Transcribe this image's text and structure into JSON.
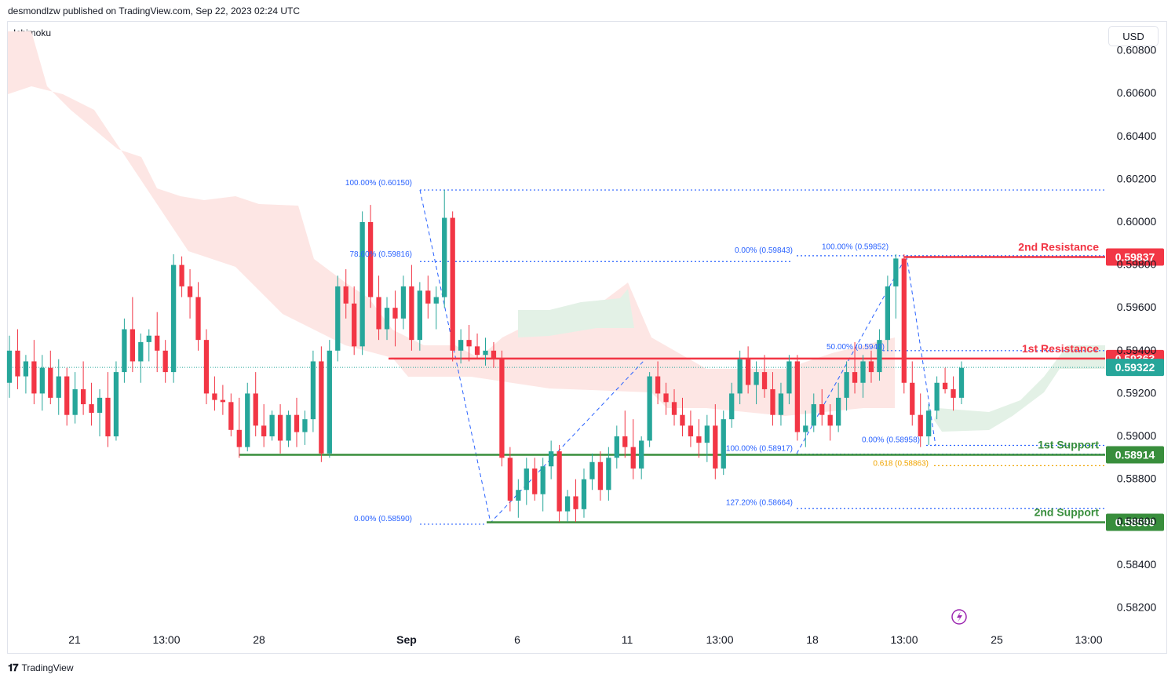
{
  "header": {
    "published_by": "desmondlzw published on TradingView.com, Sep 22, 2023 02:24 UTC"
  },
  "indicator_label": "Ichimoku",
  "currency_button": "USD",
  "footer": {
    "brand": "TradingView"
  },
  "colors": {
    "bull": "#26a69a",
    "bear": "#f23645",
    "resistance": "#f23645",
    "support": "#388e3c",
    "fib": "#2962ff",
    "fib_golden": "#f0a400",
    "cloud_bear": "#fde6e4",
    "cloud_bull": "#e3f1e6"
  },
  "chart_data": {
    "type": "candlestick",
    "symbol_quote": "USD",
    "ylim": [
      0.5812,
      0.6088
    ],
    "y_ticks": [
      "0.60800",
      "0.60600",
      "0.60400",
      "0.60200",
      "0.60000",
      "0.59800",
      "0.59600",
      "0.59400",
      "0.59200",
      "0.59000",
      "0.58800",
      "0.58600",
      "0.58400",
      "0.58200"
    ],
    "x_ticks": [
      "21",
      "13:00",
      "28",
      "Sep",
      "6",
      "11",
      "13:00",
      "18",
      "13:00",
      "25",
      "13:00"
    ],
    "levels": [
      {
        "name": "2nd Resistance",
        "value": 0.59837,
        "value_label": "0.59837",
        "kind": "resistance"
      },
      {
        "name": "1st Resistance",
        "value": 0.59363,
        "value_label": "0.59363",
        "kind": "resistance"
      },
      {
        "name": "1st Support",
        "value": 0.58914,
        "value_label": "0.58914",
        "kind": "support"
      },
      {
        "name": "2nd Support",
        "value": 0.58599,
        "value_label": "0.58599",
        "kind": "support"
      }
    ],
    "last_price": {
      "value": 0.59322,
      "label": "0.59322"
    },
    "fib_labels": [
      {
        "text": "100.00% (0.60150)",
        "value": 0.6015
      },
      {
        "text": "78.60% (0.59816)",
        "value": 0.59816
      },
      {
        "text": "0.00% (0.58590)",
        "value": 0.5859
      },
      {
        "text": "0.00% (0.59843)",
        "value": 0.59843
      },
      {
        "text": "100.00% (0.59852)",
        "value": 0.59852
      },
      {
        "text": "50.00% (0.5940)",
        "value": 0.594
      },
      {
        "text": "100.00% (0.58917)",
        "value": 0.58917
      },
      {
        "text": "0.00% (0.58958)",
        "value": 0.58958
      },
      {
        "text": "0.618 (0.58863)",
        "value": 0.58863
      },
      {
        "text": "127.20% (0.58664)",
        "value": 0.58664
      }
    ],
    "candles": [
      [
        0.5925,
        0.5947,
        0.5918,
        0.594
      ],
      [
        0.594,
        0.595,
        0.5922,
        0.5928
      ],
      [
        0.5928,
        0.5938,
        0.592,
        0.5935
      ],
      [
        0.5935,
        0.5945,
        0.5915,
        0.592
      ],
      [
        0.592,
        0.5938,
        0.5912,
        0.5932
      ],
      [
        0.5932,
        0.594,
        0.5915,
        0.5918
      ],
      [
        0.5918,
        0.5936,
        0.591,
        0.5928
      ],
      [
        0.5928,
        0.5932,
        0.5905,
        0.591
      ],
      [
        0.591,
        0.593,
        0.5906,
        0.5922
      ],
      [
        0.5922,
        0.5935,
        0.591,
        0.5915
      ],
      [
        0.5915,
        0.5925,
        0.5905,
        0.5911
      ],
      [
        0.5911,
        0.5922,
        0.59,
        0.5918
      ],
      [
        0.5918,
        0.593,
        0.5895,
        0.59
      ],
      [
        0.59,
        0.5935,
        0.5898,
        0.593
      ],
      [
        0.593,
        0.5955,
        0.5925,
        0.595
      ],
      [
        0.595,
        0.5965,
        0.593,
        0.5935
      ],
      [
        0.5935,
        0.5948,
        0.5925,
        0.5944
      ],
      [
        0.5944,
        0.595,
        0.5935,
        0.5947
      ],
      [
        0.5947,
        0.5958,
        0.593,
        0.594
      ],
      [
        0.594,
        0.5945,
        0.5925,
        0.593
      ],
      [
        0.593,
        0.5985,
        0.5925,
        0.598
      ],
      [
        0.598,
        0.5984,
        0.5965,
        0.597
      ],
      [
        0.597,
        0.5978,
        0.5955,
        0.5965
      ],
      [
        0.5965,
        0.5972,
        0.594,
        0.5945
      ],
      [
        0.5945,
        0.595,
        0.5915,
        0.592
      ],
      [
        0.592,
        0.5928,
        0.5912,
        0.5917
      ],
      [
        0.5917,
        0.5924,
        0.591,
        0.5916
      ],
      [
        0.5916,
        0.592,
        0.59,
        0.5903
      ],
      [
        0.5903,
        0.5918,
        0.589,
        0.5895
      ],
      [
        0.5895,
        0.5925,
        0.5893,
        0.592
      ],
      [
        0.592,
        0.593,
        0.59,
        0.5905
      ],
      [
        0.5905,
        0.5915,
        0.5895,
        0.59
      ],
      [
        0.59,
        0.5912,
        0.5898,
        0.591
      ],
      [
        0.591,
        0.5915,
        0.5892,
        0.5898
      ],
      [
        0.5898,
        0.5912,
        0.5895,
        0.591
      ],
      [
        0.591,
        0.5918,
        0.5895,
        0.5902
      ],
      [
        0.5902,
        0.5912,
        0.5896,
        0.5908
      ],
      [
        0.5908,
        0.594,
        0.5902,
        0.5935
      ],
      [
        0.5935,
        0.5942,
        0.5888,
        0.5892
      ],
      [
        0.5892,
        0.5945,
        0.589,
        0.594
      ],
      [
        0.594,
        0.5975,
        0.5935,
        0.597
      ],
      [
        0.597,
        0.5978,
        0.5955,
        0.5962
      ],
      [
        0.5962,
        0.597,
        0.5938,
        0.5942
      ],
      [
        0.5942,
        0.6005,
        0.5938,
        0.6
      ],
      [
        0.6,
        0.6008,
        0.596,
        0.5965
      ],
      [
        0.5965,
        0.5975,
        0.5945,
        0.595
      ],
      [
        0.595,
        0.5965,
        0.5945,
        0.596
      ],
      [
        0.596,
        0.5968,
        0.5942,
        0.5955
      ],
      [
        0.5955,
        0.5975,
        0.595,
        0.597
      ],
      [
        0.597,
        0.598,
        0.594,
        0.5945
      ],
      [
        0.5945,
        0.5972,
        0.594,
        0.5968
      ],
      [
        0.5968,
        0.5975,
        0.5955,
        0.5962
      ],
      [
        0.5962,
        0.597,
        0.595,
        0.5965
      ],
      [
        0.5965,
        0.6015,
        0.596,
        0.6002
      ],
      [
        0.6002,
        0.6005,
        0.5935,
        0.594
      ],
      [
        0.594,
        0.595,
        0.5934,
        0.5945
      ],
      [
        0.5945,
        0.5952,
        0.5935,
        0.5942
      ],
      [
        0.5942,
        0.5948,
        0.5936,
        0.5938
      ],
      [
        0.5938,
        0.5946,
        0.5933,
        0.594
      ],
      [
        0.594,
        0.5944,
        0.5932,
        0.5936
      ],
      [
        0.5936,
        0.594,
        0.5886,
        0.589
      ],
      [
        0.589,
        0.5895,
        0.5865,
        0.587
      ],
      [
        0.587,
        0.588,
        0.5862,
        0.5875
      ],
      [
        0.5875,
        0.589,
        0.5868,
        0.5885
      ],
      [
        0.5885,
        0.589,
        0.587,
        0.5873
      ],
      [
        0.5873,
        0.589,
        0.5865,
        0.5886
      ],
      [
        0.5886,
        0.5898,
        0.588,
        0.5893
      ],
      [
        0.5893,
        0.5896,
        0.586,
        0.5865
      ],
      [
        0.5865,
        0.5875,
        0.586,
        0.5872
      ],
      [
        0.5872,
        0.588,
        0.586,
        0.5866
      ],
      [
        0.5866,
        0.5885,
        0.5862,
        0.588
      ],
      [
        0.588,
        0.5892,
        0.5875,
        0.5888
      ],
      [
        0.5888,
        0.5893,
        0.587,
        0.5875
      ],
      [
        0.5875,
        0.5895,
        0.587,
        0.589
      ],
      [
        0.589,
        0.5905,
        0.5885,
        0.59
      ],
      [
        0.59,
        0.5912,
        0.589,
        0.5895
      ],
      [
        0.5895,
        0.5908,
        0.588,
        0.5885
      ],
      [
        0.5885,
        0.59,
        0.588,
        0.5898
      ],
      [
        0.5898,
        0.593,
        0.5895,
        0.5928
      ],
      [
        0.5928,
        0.5935,
        0.5915,
        0.592
      ],
      [
        0.592,
        0.5925,
        0.591,
        0.5916
      ],
      [
        0.5916,
        0.5922,
        0.5905,
        0.591
      ],
      [
        0.591,
        0.5918,
        0.59,
        0.5905
      ],
      [
        0.5905,
        0.5912,
        0.5895,
        0.59
      ],
      [
        0.59,
        0.5908,
        0.589,
        0.5897
      ],
      [
        0.5897,
        0.591,
        0.5888,
        0.5905
      ],
      [
        0.5905,
        0.5915,
        0.588,
        0.5885
      ],
      [
        0.5885,
        0.5912,
        0.5882,
        0.5908
      ],
      [
        0.5908,
        0.5925,
        0.5904,
        0.592
      ],
      [
        0.592,
        0.594,
        0.5915,
        0.5936
      ],
      [
        0.5936,
        0.5942,
        0.592,
        0.5924
      ],
      [
        0.5924,
        0.5935,
        0.5915,
        0.593
      ],
      [
        0.593,
        0.5938,
        0.5918,
        0.5922
      ],
      [
        0.5922,
        0.593,
        0.5905,
        0.591
      ],
      [
        0.591,
        0.5925,
        0.5905,
        0.592
      ],
      [
        0.592,
        0.5938,
        0.5915,
        0.5935
      ],
      [
        0.5935,
        0.5938,
        0.5898,
        0.5902
      ],
      [
        0.5902,
        0.5912,
        0.5895,
        0.5905
      ],
      [
        0.5905,
        0.592,
        0.5902,
        0.5915
      ],
      [
        0.5915,
        0.5922,
        0.5905,
        0.591
      ],
      [
        0.591,
        0.5915,
        0.5898,
        0.5905
      ],
      [
        0.5905,
        0.5925,
        0.5902,
        0.5918
      ],
      [
        0.5918,
        0.5935,
        0.5912,
        0.593
      ],
      [
        0.593,
        0.5944,
        0.592,
        0.5925
      ],
      [
        0.5925,
        0.5938,
        0.5918,
        0.5935
      ],
      [
        0.5935,
        0.594,
        0.5925,
        0.593
      ],
      [
        0.593,
        0.595,
        0.5926,
        0.5945
      ],
      [
        0.5945,
        0.5975,
        0.594,
        0.597
      ],
      [
        0.597,
        0.5985,
        0.5955,
        0.5983
      ],
      [
        0.5983,
        0.5985,
        0.592,
        0.5925
      ],
      [
        0.5925,
        0.5935,
        0.5905,
        0.591
      ],
      [
        0.591,
        0.592,
        0.5895,
        0.59
      ],
      [
        0.59,
        0.5915,
        0.5896,
        0.5912
      ],
      [
        0.5912,
        0.5928,
        0.5908,
        0.5925
      ],
      [
        0.5925,
        0.5932,
        0.592,
        0.5922
      ],
      [
        0.5922,
        0.5928,
        0.5912,
        0.5918
      ],
      [
        0.5918,
        0.5935,
        0.5915,
        0.5932
      ]
    ]
  }
}
